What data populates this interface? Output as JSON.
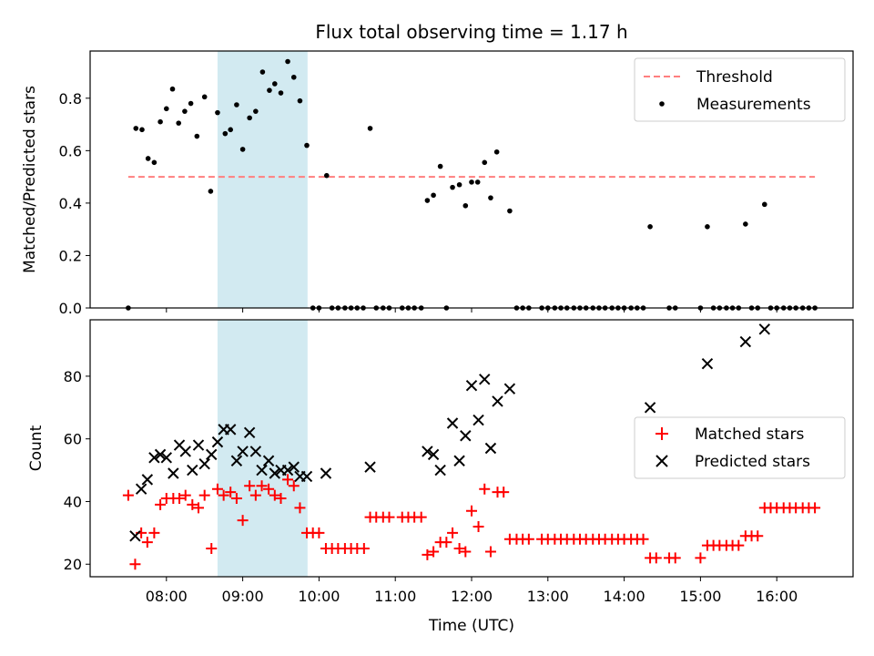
{
  "title": "Flux total observing time = 1.17 h",
  "colors": {
    "threshold": "#ff7f7f",
    "measurement": "#000000",
    "matched": "#ff0000",
    "predicted": "#000000",
    "highlight": "#add8e6"
  },
  "chart_data": [
    {
      "type": "scatter",
      "ylabel": "Matched/Predicted stars",
      "xlim": [
        7.0,
        17.0
      ],
      "ylim": [
        0.0,
        0.98
      ],
      "yticks": [
        "0.0",
        "0.2",
        "0.4",
        "0.6",
        "0.8"
      ],
      "yticks_values": [
        0,
        0.2,
        0.4,
        0.6,
        0.8
      ],
      "grid": false,
      "legend_position": "top-right",
      "highlight_span": {
        "start": 8.67,
        "end": 9.85
      },
      "threshold": {
        "name": "Threshold",
        "value": 0.5,
        "x_range": [
          7.5,
          16.5
        ]
      },
      "measurements": {
        "name": "Measurements",
        "x": [
          7.5,
          7.6,
          7.68,
          7.76,
          7.84,
          7.92,
          8.0,
          8.08,
          8.16,
          8.24,
          8.32,
          8.4,
          8.5,
          8.58,
          8.67,
          8.77,
          8.84,
          8.92,
          9.0,
          9.09,
          9.17,
          9.26,
          9.35,
          9.42,
          9.5,
          9.59,
          9.67,
          9.75,
          9.84,
          10.1,
          10.67,
          11.42,
          11.5,
          11.59,
          11.75,
          11.84,
          11.92,
          12.0,
          12.08,
          12.17,
          12.25,
          12.33,
          12.5,
          14.34,
          15.09,
          15.59,
          15.84,
          9.92,
          10.0,
          10.17,
          10.25,
          10.34,
          10.42,
          10.5,
          10.58,
          10.75,
          10.84,
          10.92,
          11.09,
          11.17,
          11.25,
          11.34,
          11.67,
          12.59,
          12.67,
          12.75,
          12.92,
          13.0,
          13.09,
          13.17,
          13.25,
          13.34,
          13.42,
          13.5,
          13.59,
          13.67,
          13.75,
          13.84,
          13.92,
          14.0,
          14.09,
          14.17,
          14.25,
          14.59,
          14.67,
          15.0,
          15.17,
          15.25,
          15.34,
          15.42,
          15.5,
          15.67,
          15.75,
          15.92,
          16.0,
          16.09,
          16.17,
          16.25,
          16.34,
          16.42,
          16.5
        ],
        "y": [
          0.0,
          0.685,
          0.68,
          0.57,
          0.555,
          0.71,
          0.76,
          0.835,
          0.705,
          0.75,
          0.78,
          0.655,
          0.805,
          0.445,
          0.745,
          0.665,
          0.68,
          0.775,
          0.605,
          0.725,
          0.75,
          0.9,
          0.83,
          0.855,
          0.82,
          0.94,
          0.88,
          0.79,
          0.62,
          0.505,
          0.685,
          0.41,
          0.43,
          0.54,
          0.46,
          0.47,
          0.39,
          0.48,
          0.48,
          0.555,
          0.42,
          0.595,
          0.37,
          0.31,
          0.31,
          0.32,
          0.395,
          0,
          0,
          0,
          0,
          0,
          0,
          0,
          0,
          0,
          0,
          0,
          0,
          0,
          0,
          0,
          0,
          0,
          0,
          0,
          0,
          0,
          0,
          0,
          0,
          0,
          0,
          0,
          0,
          0,
          0,
          0,
          0,
          0,
          0,
          0,
          0,
          0,
          0,
          0,
          0,
          0,
          0,
          0,
          0,
          0,
          0,
          0,
          0,
          0,
          0,
          0,
          0,
          0,
          0
        ]
      }
    },
    {
      "type": "scatter",
      "ylabel": "Count",
      "xlabel": "Time (UTC)",
      "xlim": [
        7.0,
        17.0
      ],
      "ylim": [
        16,
        98
      ],
      "xticks": [
        "08:00",
        "09:00",
        "10:00",
        "11:00",
        "12:00",
        "13:00",
        "14:00",
        "15:00",
        "16:00"
      ],
      "xticks_values": [
        8,
        9,
        10,
        11,
        12,
        13,
        14,
        15,
        16
      ],
      "yticks": [
        "20",
        "40",
        "60",
        "80"
      ],
      "yticks_values": [
        20,
        40,
        60,
        80
      ],
      "grid": false,
      "legend_position": "center-right",
      "highlight_span": {
        "start": 8.67,
        "end": 9.85
      },
      "series": [
        {
          "name": "Matched stars",
          "marker": "plus",
          "x": [
            7.5,
            7.59,
            7.67,
            7.75,
            7.84,
            7.92,
            8.0,
            8.09,
            8.17,
            8.25,
            8.34,
            8.42,
            8.5,
            8.59,
            8.67,
            8.75,
            8.84,
            8.92,
            9.0,
            9.09,
            9.17,
            9.25,
            9.34,
            9.42,
            9.5,
            9.59,
            9.67,
            9.75,
            9.84,
            9.92,
            10.0,
            10.09,
            10.17,
            10.25,
            10.34,
            10.42,
            10.5,
            10.59,
            10.67,
            10.75,
            10.84,
            10.92,
            11.09,
            11.17,
            11.25,
            11.34,
            11.42,
            11.5,
            11.59,
            11.67,
            11.75,
            11.84,
            11.92,
            12.0,
            12.09,
            12.17,
            12.25,
            12.34,
            12.42,
            12.5,
            12.59,
            12.67,
            12.75,
            12.92,
            13.0,
            13.09,
            13.17,
            13.25,
            13.34,
            13.42,
            13.5,
            13.59,
            13.67,
            13.75,
            13.84,
            13.92,
            14.0,
            14.09,
            14.17,
            14.25,
            14.34,
            14.42,
            14.59,
            14.67,
            15.0,
            15.09,
            15.17,
            15.25,
            15.34,
            15.42,
            15.5,
            15.59,
            15.67,
            15.75,
            15.84,
            15.92,
            16.0,
            16.09,
            16.17,
            16.25,
            16.34,
            16.42,
            16.5
          ],
          "y": [
            42,
            20,
            30,
            27,
            30,
            39,
            41,
            41,
            41,
            42,
            39,
            38,
            42,
            25,
            44,
            42,
            43,
            41,
            34,
            45,
            42,
            45,
            44,
            42,
            41,
            47,
            45,
            38,
            30,
            30,
            30,
            25,
            25,
            25,
            25,
            25,
            25,
            25,
            35,
            35,
            35,
            35,
            35,
            35,
            35,
            35,
            23,
            24,
            27,
            27,
            30,
            25,
            24,
            37,
            32,
            44,
            24,
            43,
            43,
            28,
            28,
            28,
            28,
            28,
            28,
            28,
            28,
            28,
            28,
            28,
            28,
            28,
            28,
            28,
            28,
            28,
            28,
            28,
            28,
            28,
            22,
            22,
            22,
            22,
            22,
            26,
            26,
            26,
            26,
            26,
            26,
            29,
            29,
            29,
            38,
            38,
            38,
            38,
            38,
            38,
            38,
            38,
            38
          ]
        },
        {
          "name": "Predicted stars",
          "marker": "x",
          "x": [
            7.59,
            7.67,
            7.75,
            7.84,
            7.92,
            8.0,
            8.09,
            8.17,
            8.25,
            8.34,
            8.42,
            8.5,
            8.59,
            8.67,
            8.75,
            8.84,
            8.92,
            9.0,
            9.09,
            9.17,
            9.25,
            9.34,
            9.42,
            9.5,
            9.59,
            9.67,
            9.75,
            9.84,
            10.09,
            10.67,
            11.42,
            11.5,
            11.59,
            11.75,
            11.84,
            11.92,
            12.0,
            12.09,
            12.17,
            12.25,
            12.34,
            12.5,
            14.34,
            15.09,
            15.59,
            15.84
          ],
          "y": [
            29,
            44,
            47,
            54,
            55,
            54,
            49,
            58,
            56,
            50,
            58,
            52,
            55,
            59,
            63,
            63,
            53,
            56,
            62,
            56,
            50,
            53,
            49,
            50,
            50,
            51,
            48,
            48,
            49,
            51,
            56,
            55,
            50,
            65,
            53,
            61,
            77,
            66,
            79,
            57,
            72,
            76,
            70,
            84,
            91,
            95
          ]
        }
      ]
    }
  ]
}
